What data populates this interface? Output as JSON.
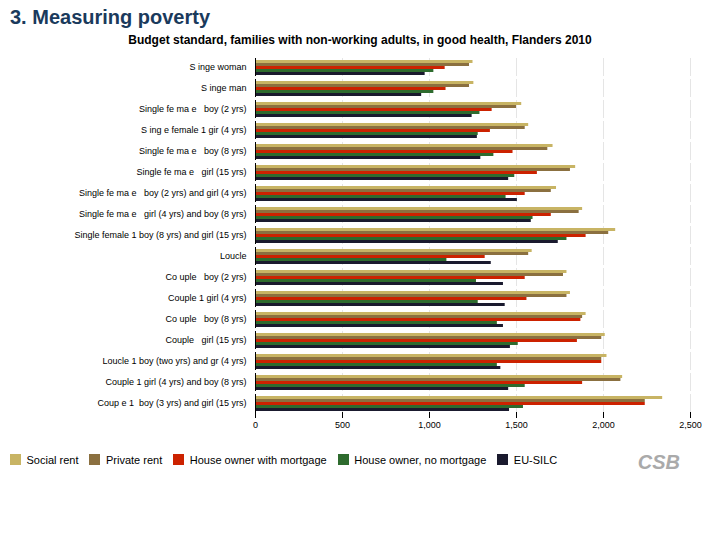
{
  "chart_data": {
    "type": "bar",
    "orientation": "horizontal",
    "title": "3.  Measuring poverty",
    "subtitle": "Budget standard, families with non-working adults, in good health, Flanders 2010",
    "categories": [
      "Coup e 1  boy (3 yrs) and girl (15 yrs)",
      "Couple 1 girl (4 yrs) and boy (8 yrs)",
      "Loucle 1 boy (two yrs) and gr (4 yrs)",
      "Couple   girl (15 yrs)",
      "Co uple   boy (8 yrs)",
      "Couple 1 girl (4 yrs)",
      "Co uple   boy (2 yrs)",
      "Loucle",
      "Single female 1 boy (8 yrs) and girl (15 yrs)",
      "Single fe ma e   girl (4 yrs) and boy (8 yrs)",
      "Single fe ma e   boy (2 yrs) and girl (4 yrs)",
      "Single fe ma e   girl (15 yrs)",
      "Single fe ma e   boy (8 yrs)",
      "S ing e female 1 gir (4 yrs)",
      "Single fe ma e   boy (2 yrs)",
      "S inge man",
      "S inge woman"
    ],
    "series": [
      {
        "name": "Social rent",
        "color": "#c8b464",
        "values": [
          2340,
          2110,
          2020,
          2010,
          1900,
          1810,
          1790,
          1590,
          2070,
          1880,
          1730,
          1840,
          1710,
          1570,
          1530,
          1255,
          1250
        ]
      },
      {
        "name": "Private rent",
        "color": "#8b7040",
        "values": [
          2240,
          2100,
          1990,
          1990,
          1880,
          1790,
          1770,
          1570,
          2030,
          1860,
          1700,
          1810,
          1680,
          1550,
          1500,
          1230,
          1230
        ]
      },
      {
        "name": "House owner with mortgage",
        "color": "#cc2200",
        "values": [
          2240,
          1880,
          1990,
          1850,
          1870,
          1560,
          1550,
          1320,
          1900,
          1700,
          1550,
          1620,
          1480,
          1350,
          1360,
          1095,
          1090
        ]
      },
      {
        "name": "House owner, no mortgage",
        "color": "#2e6b2e",
        "values": [
          1540,
          1550,
          1390,
          1510,
          1390,
          1280,
          1270,
          1100,
          1790,
          1595,
          1440,
          1490,
          1370,
          1280,
          1290,
          1025,
          1025
        ]
      },
      {
        "name": "EU-SILC",
        "color": "#1a1a2e",
        "values": [
          1460,
          1455,
          1410,
          1465,
          1425,
          1435,
          1425,
          1355,
          1740,
          1585,
          1505,
          1455,
          1295,
          1275,
          1245,
          955,
          975
        ]
      }
    ],
    "xlim": [
      0,
      2500
    ],
    "xticks": [
      0,
      500,
      1000,
      1500,
      2000,
      2500
    ],
    "grid": true,
    "legend": "bottom-left",
    "annotations": [
      "CSB"
    ]
  }
}
